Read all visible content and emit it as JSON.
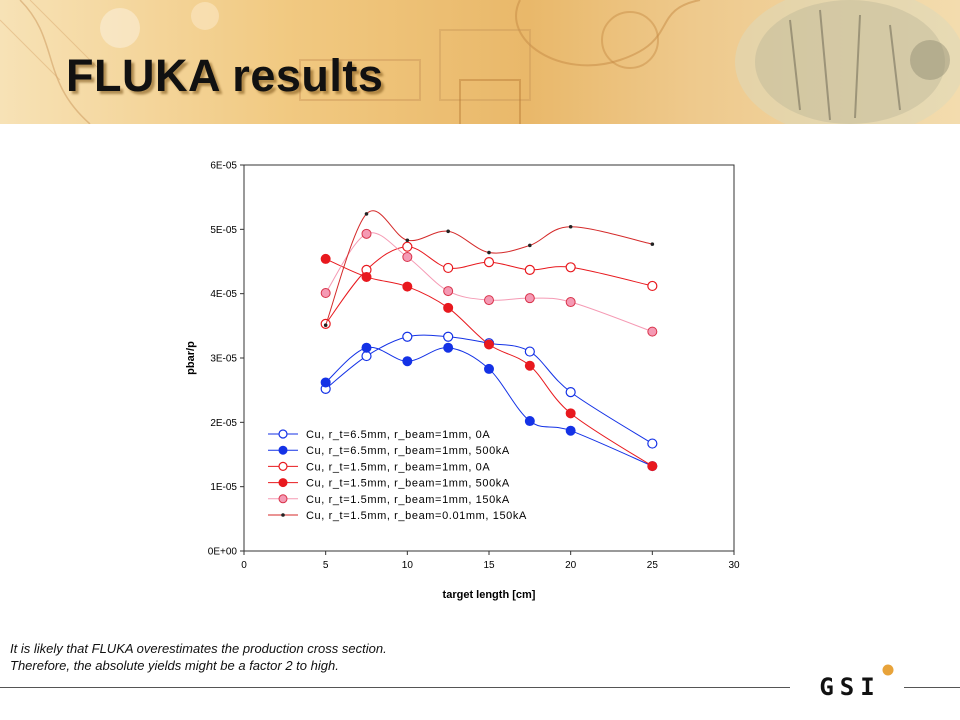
{
  "slide": {
    "title": "FLUKA results",
    "notes": [
      "It is likely that FLUKA overestimates the production cross section.",
      "Therefore, the absolute yields might be a factor 2 to high."
    ],
    "logo_text": "GSI"
  },
  "colors": {
    "blue": "#1432e6",
    "red": "#e8191e",
    "pink": "#f59ab4",
    "darkred": "#d42a2a",
    "banner": "#f1c981"
  },
  "chart_data": {
    "type": "line",
    "title": "",
    "xlabel": "target length [cm]",
    "ylabel": "pbar/p",
    "xlim": [
      0,
      30
    ],
    "ylim": [
      0,
      6e-05
    ],
    "x_ticks": [
      "0",
      "5",
      "10",
      "15",
      "20",
      "25",
      "30"
    ],
    "y_ticks": [
      "0E+00",
      "1E-05",
      "2E-05",
      "3E-05",
      "4E-05",
      "5E-05",
      "6E-05"
    ],
    "grid": false,
    "legend_position": "bottom-left",
    "series": [
      {
        "name": "Cu, r_t=6.5mm, r_beam=1mm, 0A",
        "color": "blue",
        "marker": "open-circle",
        "x": [
          5,
          7.5,
          10,
          12.5,
          15,
          17.5,
          20,
          25
        ],
        "y": [
          2.52e-05,
          3.03e-05,
          3.33e-05,
          3.33e-05,
          3.23e-05,
          3.1e-05,
          2.47e-05,
          1.67e-05
        ]
      },
      {
        "name": "Cu, r_t=6.5mm, r_beam=1mm, 500kA",
        "color": "blue",
        "marker": "filled-circle",
        "x": [
          5,
          7.5,
          10,
          12.5,
          15,
          17.5,
          20,
          25
        ],
        "y": [
          2.62e-05,
          3.16e-05,
          2.95e-05,
          3.16e-05,
          2.83e-05,
          2.02e-05,
          1.87e-05,
          1.32e-05
        ]
      },
      {
        "name": "Cu, r_t=1.5mm, r_beam=1mm, 0A",
        "color": "red",
        "marker": "open-circle",
        "x": [
          5,
          7.5,
          10,
          12.5,
          15,
          17.5,
          20,
          25
        ],
        "y": [
          3.53e-05,
          4.37e-05,
          4.73e-05,
          4.4e-05,
          4.49e-05,
          4.37e-05,
          4.41e-05,
          4.12e-05
        ]
      },
      {
        "name": "Cu, r_t=1.5mm, r_beam=1mm, 500kA",
        "color": "red",
        "marker": "filled-circle",
        "x": [
          5,
          7.5,
          10,
          12.5,
          15,
          17.5,
          20,
          25
        ],
        "y": [
          4.54e-05,
          4.26e-05,
          4.11e-05,
          3.78e-05,
          3.21e-05,
          2.88e-05,
          2.14e-05,
          1.32e-05
        ]
      },
      {
        "name": "Cu, r_t=1.5mm, r_beam=1mm, 150kA",
        "color": "pink",
        "marker": "filled-circle-outlined",
        "x": [
          5,
          7.5,
          10,
          12.5,
          15,
          17.5,
          20,
          25
        ],
        "y": [
          4.01e-05,
          4.93e-05,
          4.57e-05,
          4.04e-05,
          3.9e-05,
          3.93e-05,
          3.87e-05,
          3.41e-05
        ]
      },
      {
        "name": "Cu, r_t=1.5mm, r_beam=0.01mm, 150kA",
        "color": "darkred",
        "marker": "dot",
        "x": [
          5,
          7.5,
          10,
          12.5,
          15,
          17.5,
          20,
          25
        ],
        "y": [
          3.51e-05,
          5.24e-05,
          4.83e-05,
          4.97e-05,
          4.64e-05,
          4.75e-05,
          5.04e-05,
          4.77e-05
        ]
      }
    ]
  }
}
